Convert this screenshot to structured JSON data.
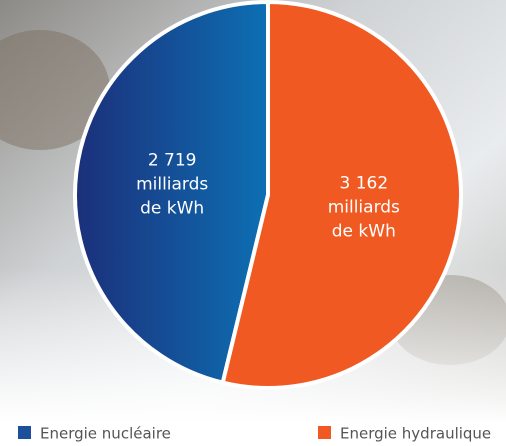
{
  "chart_data": {
    "type": "pie",
    "categories": [
      "Energie nucléaire",
      "Energie hydraulique"
    ],
    "values": [
      2719,
      3162
    ],
    "value_labels": [
      [
        "2 719",
        "milliards",
        "de kWh"
      ],
      [
        "3 162",
        "milliards",
        "de kWh"
      ]
    ],
    "colors": [
      "#1d4f9c",
      "#f05a22"
    ],
    "legend": "bottom"
  }
}
